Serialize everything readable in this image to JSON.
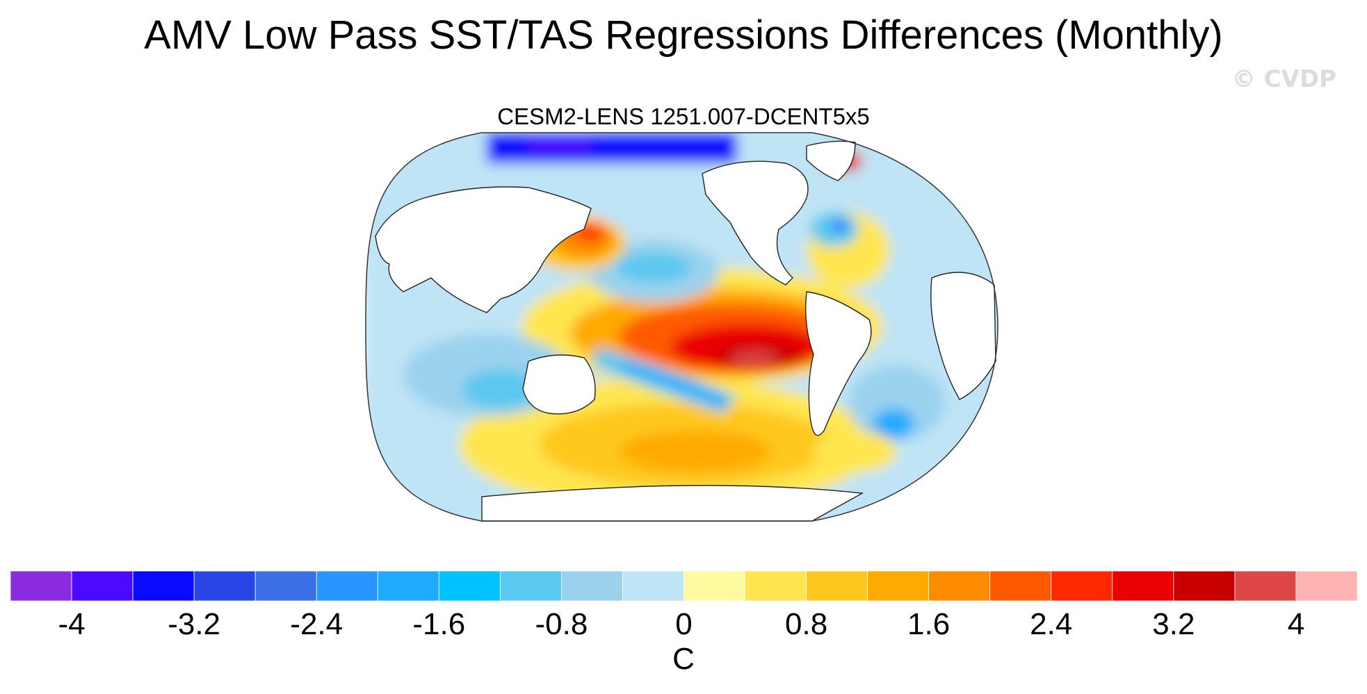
{
  "title": "AMV Low Pass SST/TAS Regressions Differences (Monthly)",
  "watermark": "© CVDP",
  "panel": {
    "subtitle": "CESM2-LENS 1251.007-DCENT5x5",
    "projection": "Robinson",
    "center_longitude": 180,
    "ocean_patterns": [
      {
        "name": "equatorial-pacific-warm-tongue",
        "lon": [
          150,
          280
        ],
        "lat": [
          -20,
          20
        ],
        "peak_value": 4.0
      },
      {
        "name": "south-pacific-cold-diagonal",
        "lon": [
          155,
          250
        ],
        "lat": [
          -35,
          -10
        ],
        "peak_value": -1.6
      },
      {
        "name": "kuroshio-warm",
        "lon": [
          140,
          175
        ],
        "lat": [
          30,
          45
        ],
        "peak_value": 2.8
      },
      {
        "name": "north-pacific-cold",
        "lon": [
          175,
          225
        ],
        "lat": [
          25,
          45
        ],
        "peak_value": -1.2
      },
      {
        "name": "southern-ocean-warm",
        "lon": [
          160,
          280
        ],
        "lat": [
          -60,
          -35
        ],
        "peak_value": 1.6
      },
      {
        "name": "indian-ocean-cool",
        "lon": [
          40,
          110
        ],
        "lat": [
          -45,
          20
        ],
        "peak_value": -1.2
      },
      {
        "name": "north-atlantic-mixed",
        "lon": [
          290,
          350
        ],
        "lat": [
          20,
          60
        ],
        "peak_value": 0.8
      },
      {
        "name": "south-atlantic-cool",
        "lon": [
          320,
          380
        ],
        "lat": [
          -40,
          0
        ],
        "peak_value": -1.2
      },
      {
        "name": "arctic-cold",
        "lon": [
          120,
          270
        ],
        "lat": [
          72,
          90
        ],
        "peak_value": -4.0
      },
      {
        "name": "barents-warm",
        "lon": [
          25,
          50
        ],
        "lat": [
          68,
          80
        ],
        "peak_value": 3.6
      }
    ]
  },
  "colorbar": {
    "levels": [
      -4.4,
      -4,
      -3.6,
      -3.2,
      -2.8,
      -2.4,
      -2,
      -1.6,
      -1.2,
      -0.8,
      -0.4,
      0,
      0.4,
      0.8,
      1.2,
      1.6,
      2,
      2.4,
      2.8,
      3.2,
      3.6,
      4,
      4.4
    ],
    "colors": [
      "#8a2be2",
      "#4b0aff",
      "#0a0aff",
      "#2846e6",
      "#3c6ee6",
      "#2896ff",
      "#1eaaff",
      "#00c3ff",
      "#5ac8f0",
      "#9bd2ee",
      "#bfe4f5",
      "#fffaa0",
      "#ffe650",
      "#ffc81e",
      "#ffaa00",
      "#ff8c00",
      "#ff5a00",
      "#ff2800",
      "#eb0000",
      "#c80000",
      "#dc4646",
      "#ffb4b4"
    ],
    "tick_labels": [
      "-4",
      "-3.2",
      "-2.4",
      "-1.6",
      "-0.8",
      "0",
      "0.8",
      "1.6",
      "2.4",
      "3.2",
      "4"
    ],
    "units": "C"
  }
}
